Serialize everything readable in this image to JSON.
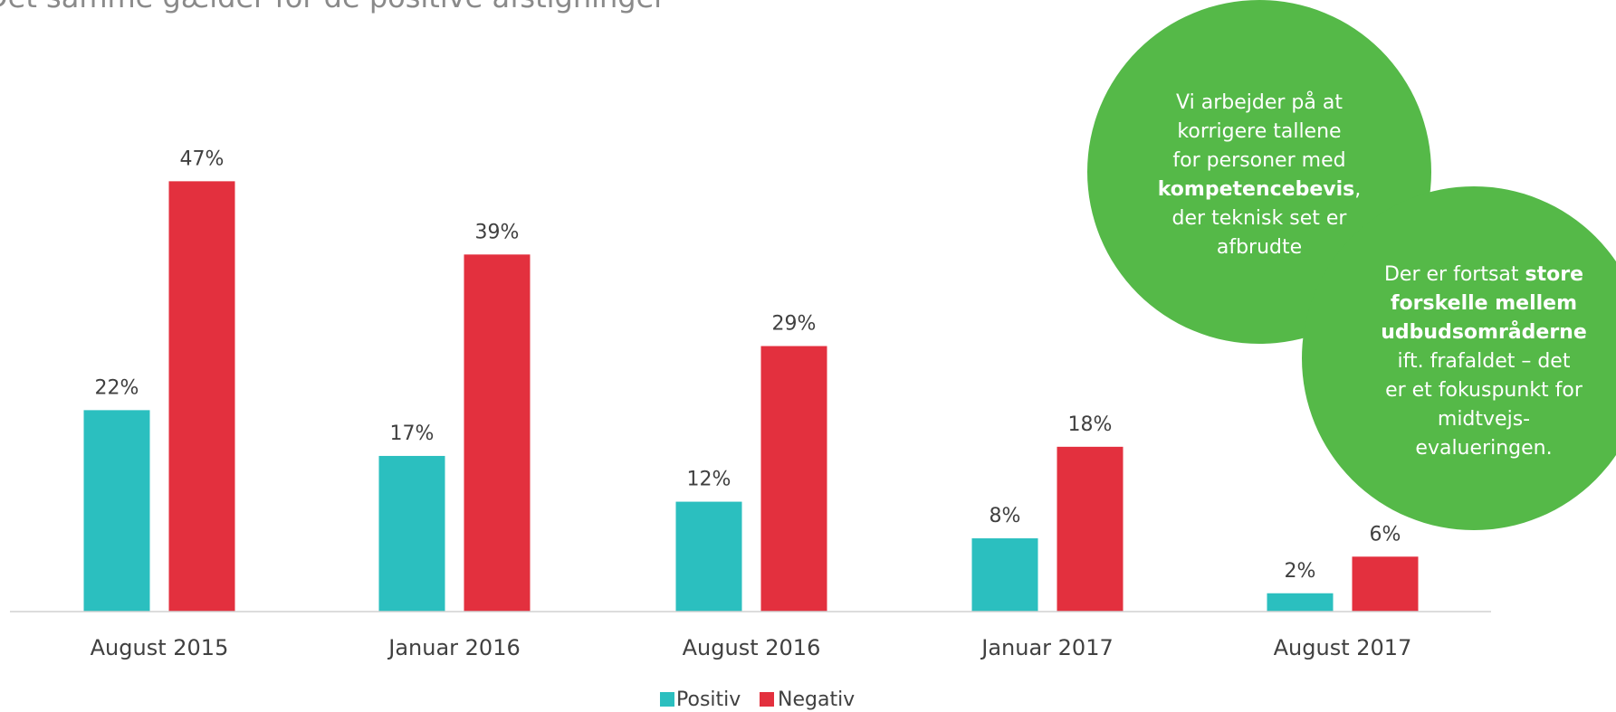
{
  "chart_data": {
    "type": "bar",
    "title": "Det samme gælder for de positive afstigninger",
    "categories": [
      "August 2015",
      "Januar 2016",
      "August 2016",
      "Januar 2017",
      "August 2017"
    ],
    "series": [
      {
        "name": "Positiv",
        "color": "#2bbfbf",
        "values": [
          22,
          17,
          12,
          8,
          2
        ],
        "value_labels": [
          "22%",
          "17%",
          "12%",
          "8%",
          "2%"
        ]
      },
      {
        "name": "Negativ",
        "color": "#e3303e",
        "values": [
          47,
          39,
          29,
          18,
          6
        ],
        "value_labels": [
          "47%",
          "39%",
          "29%",
          "18%",
          "6%"
        ]
      }
    ],
    "legend": "bottom"
  },
  "bubbles": [
    {
      "color": "#55b948",
      "lines": [
        [
          {
            "text": "Vi arbejder på at"
          }
        ],
        [
          {
            "text": "korrigere tallene"
          }
        ],
        [
          {
            "text": "for personer med"
          }
        ],
        [
          {
            "text": "kompetencebevis",
            "bold": true
          },
          {
            "text": ","
          }
        ],
        [
          {
            "text": "der teknisk set er"
          }
        ],
        [
          {
            "text": "afbrudte"
          }
        ]
      ]
    },
    {
      "color": "#55b948",
      "lines": [
        [
          {
            "text": "Der er fortsat "
          },
          {
            "text": "store",
            "bold": true
          }
        ],
        [
          {
            "text": "forskelle mellem",
            "bold": true
          }
        ],
        [
          {
            "text": "udbudsområderne",
            "bold": true
          }
        ],
        [
          {
            "text": "ift. frafaldet  – det"
          }
        ],
        [
          {
            "text": "er et fokuspunkt for"
          }
        ],
        [
          {
            "text": "midtvejs-"
          }
        ],
        [
          {
            "text": "evalueringen."
          }
        ]
      ]
    }
  ]
}
